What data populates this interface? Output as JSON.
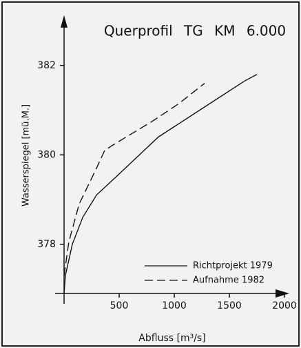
{
  "chart_data": {
    "type": "line",
    "title": "Querprofil TG KM 6.000",
    "xlabel": "Abfluss [m³/s]",
    "ylabel": "Wasserspiegel [mü.M.]",
    "xlim": [
      0,
      2050
    ],
    "ylim": [
      376.9,
      383.0
    ],
    "xticks": [
      500,
      1000,
      1500,
      2000
    ],
    "yticks": [
      378,
      380,
      382
    ],
    "series": [
      {
        "name": "Richtprojekt 1979",
        "color": "#111111",
        "dash": false,
        "x": [
          0,
          12,
          75,
          169,
          294,
          512,
          856,
          1231,
          1637,
          1750
        ],
        "values": [
          376.9,
          377.3,
          378.0,
          378.6,
          379.1,
          379.6,
          380.4,
          381.0,
          381.65,
          381.8
        ]
      },
      {
        "name": "Aufnahme 1982",
        "color": "#111111",
        "dash": true,
        "x": [
          0,
          44,
          137,
          294,
          369,
          431,
          544,
          794,
          1044,
          1275
        ],
        "values": [
          377.3,
          378.06,
          378.9,
          379.7,
          380.1,
          380.2,
          380.37,
          380.74,
          381.15,
          381.6
        ]
      }
    ]
  }
}
